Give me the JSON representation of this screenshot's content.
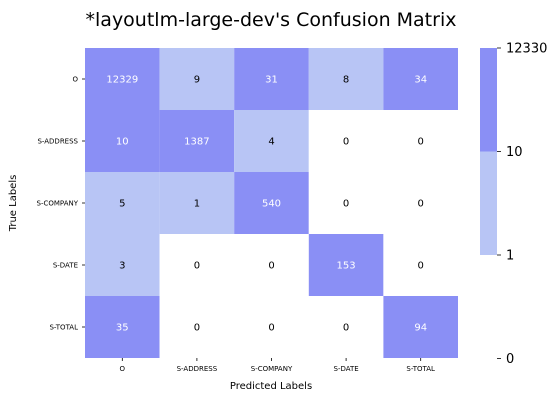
{
  "chart_data": {
    "type": "heatmap",
    "title": "*layoutlm-large-dev's Confusion Matrix",
    "xlabel": "Predicted Labels",
    "ylabel": "True Labels",
    "x_categories": [
      "O",
      "S-ADDRESS",
      "S-COMPANY",
      "S-DATE",
      "S-TOTAL"
    ],
    "y_categories": [
      "O",
      "S-ADDRESS",
      "S-COMPANY",
      "S-DATE",
      "S-TOTAL"
    ],
    "values": [
      [
        12329,
        9,
        31,
        8,
        34
      ],
      [
        10,
        1387,
        4,
        0,
        0
      ],
      [
        5,
        1,
        540,
        0,
        0
      ],
      [
        3,
        0,
        0,
        153,
        0
      ],
      [
        35,
        0,
        0,
        0,
        94
      ]
    ],
    "colorbar": {
      "ticks": [
        "12330",
        "10",
        "1",
        "0"
      ],
      "bins": [
        {
          "min": 10,
          "max": 12330,
          "color": "#8a8ff5"
        },
        {
          "min": 1,
          "max": 10,
          "color": "#b8c5f5"
        },
        {
          "min": 0,
          "max": 1,
          "color": "#ffffff"
        }
      ]
    },
    "colors": {
      "high": "#8a8ff5",
      "mid": "#b8c5f5",
      "low": "#ffffff",
      "text_on_high": "#ffffff",
      "text_on_mid": "#000000",
      "text_on_low": "#000000"
    },
    "grid": false,
    "legend": "right"
  }
}
